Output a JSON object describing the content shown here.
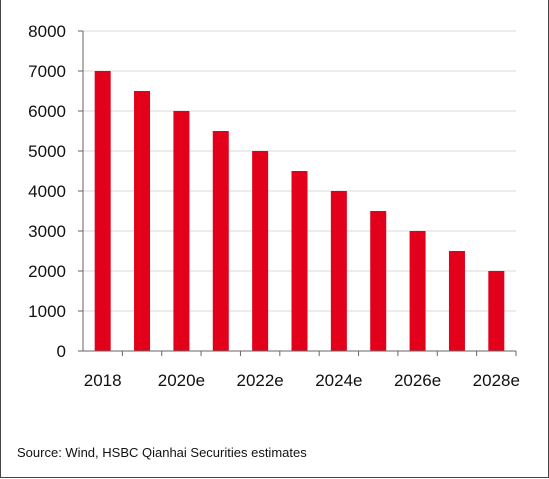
{
  "chart_data": {
    "type": "bar",
    "categories": [
      "2018",
      "2019",
      "2020e",
      "2021e",
      "2022e",
      "2023e",
      "2024e",
      "2025e",
      "2026e",
      "2027e",
      "2028e"
    ],
    "x_tick_labels": [
      "2018",
      "2020e",
      "2022e",
      "2024e",
      "2026e",
      "2028e"
    ],
    "values": [
      7000,
      6500,
      6000,
      5500,
      5000,
      4500,
      4000,
      3500,
      3000,
      2500,
      2000
    ],
    "y_ticks": [
      "0",
      "1000",
      "2000",
      "3000",
      "4000",
      "5000",
      "6000",
      "7000",
      "8000"
    ],
    "ylim": [
      0,
      8000
    ],
    "grid": true,
    "legend": "none",
    "bar_color": "#e2001a",
    "title": "",
    "xlabel": "",
    "ylabel": ""
  },
  "footer": {
    "source": "Source: Wind, HSBC Qianhai Securities estimates"
  }
}
